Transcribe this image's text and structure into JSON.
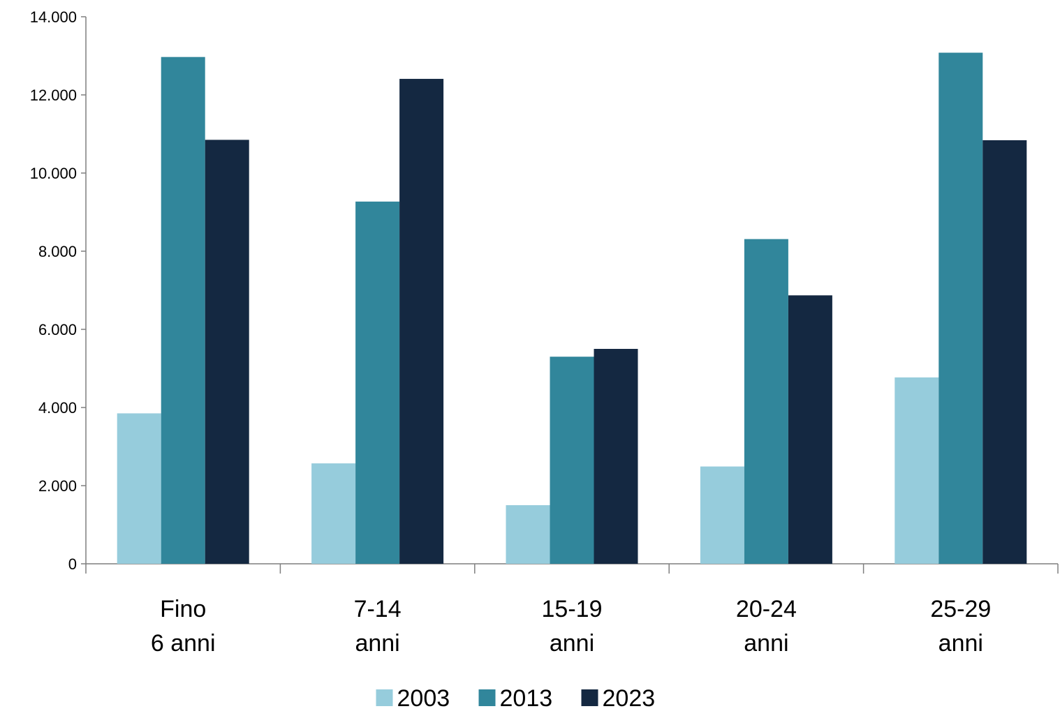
{
  "chart_data": {
    "type": "bar",
    "categories": [
      [
        "Fino",
        "6 anni"
      ],
      [
        "7-14",
        "anni"
      ],
      [
        "15-19",
        "anni"
      ],
      [
        "20-24",
        "anni"
      ],
      [
        "25-29",
        "anni"
      ]
    ],
    "series": [
      {
        "name": "2003",
        "color": "#96CCDC",
        "values": [
          3850,
          2570,
          1500,
          2490,
          4770
        ]
      },
      {
        "name": "2013",
        "color": "#31869B",
        "values": [
          12970,
          9270,
          5300,
          8310,
          13080
        ]
      },
      {
        "name": "2023",
        "color": "#142841",
        "values": [
          10850,
          12410,
          5500,
          6870,
          10840
        ]
      }
    ],
    "ylim": [
      0,
      14000
    ],
    "yticks": [
      0,
      2000,
      4000,
      6000,
      8000,
      10000,
      12000,
      14000
    ],
    "ytick_labels": [
      "0",
      "2.000",
      "4.000",
      "6.000",
      "8.000",
      "10.000",
      "12.000",
      "14.000"
    ],
    "grid": false,
    "legend_position": "bottom-center",
    "title": "",
    "xlabel": "",
    "ylabel": ""
  }
}
